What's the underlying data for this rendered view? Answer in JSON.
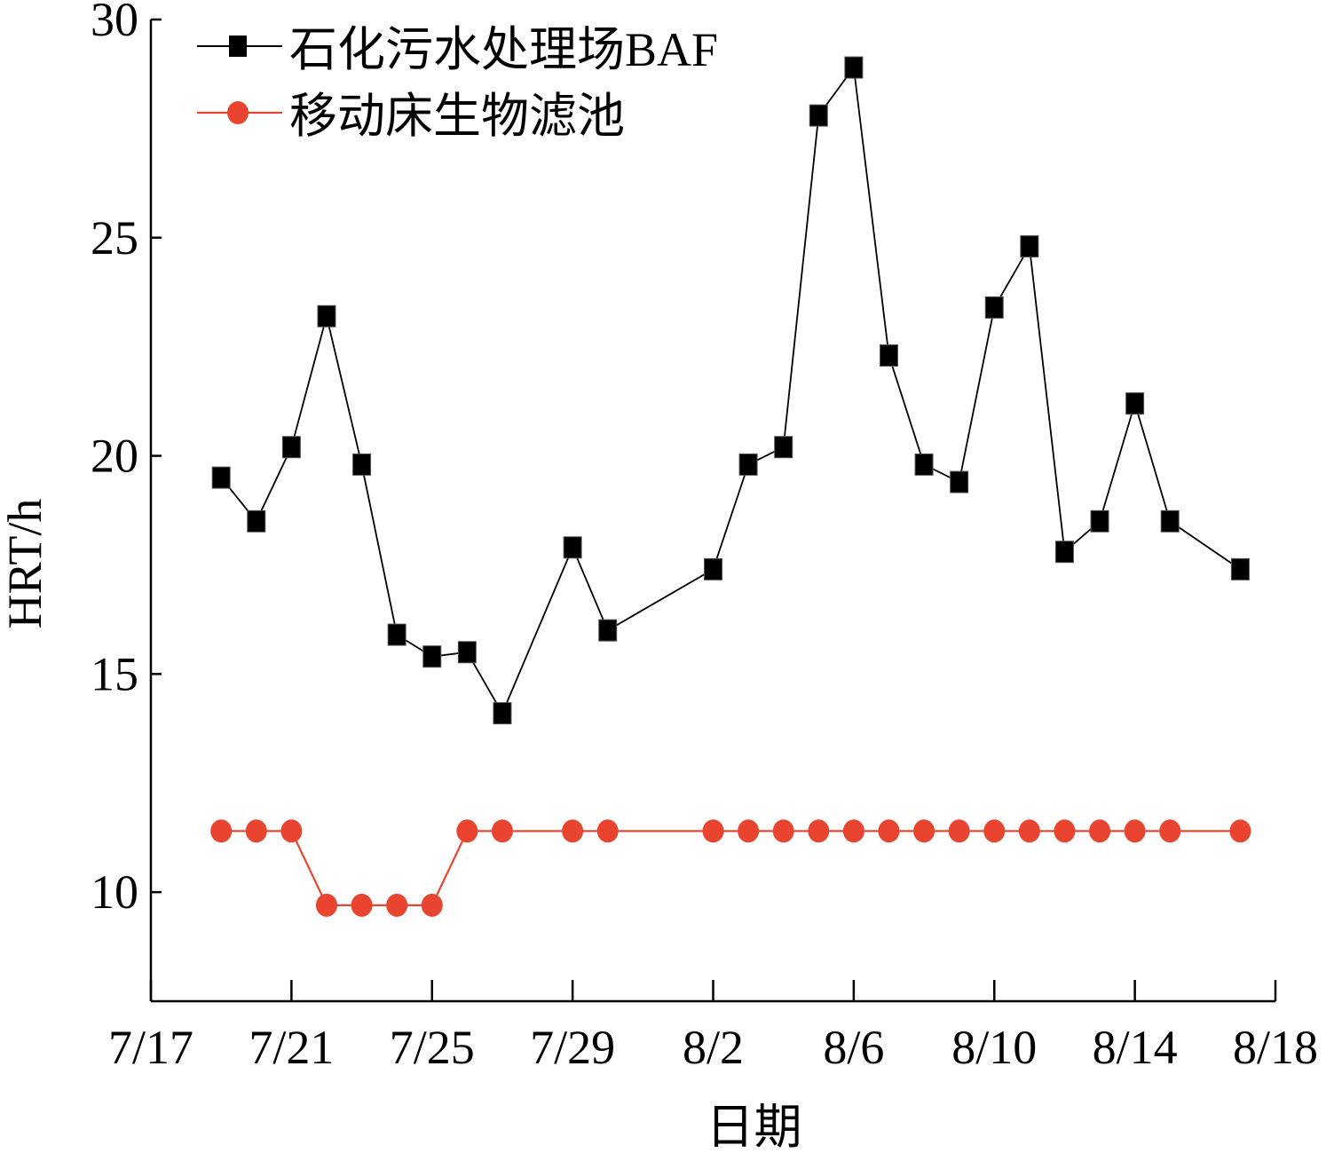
{
  "chart_data": {
    "type": "line",
    "title": "",
    "xlabel": "日期",
    "ylabel": "HRT/h",
    "xlim": [
      "7/17",
      "8/18"
    ],
    "ylim": [
      7.5,
      30
    ],
    "x_ticks": [
      "7/17",
      "7/21",
      "7/25",
      "7/29",
      "8/2",
      "8/6",
      "8/10",
      "8/14",
      "8/18"
    ],
    "y_ticks": [
      10,
      15,
      20,
      25,
      30
    ],
    "grid": false,
    "legend_position": "top-left",
    "series": [
      {
        "name": "石化污水处理场BAF",
        "color": "#000000",
        "marker": "square",
        "x": [
          "7/19",
          "7/20",
          "7/21",
          "7/22",
          "7/23",
          "7/24",
          "7/25",
          "7/26",
          "7/27",
          "7/29",
          "7/30",
          "8/2",
          "8/3",
          "8/4",
          "8/5",
          "8/6",
          "8/7",
          "8/8",
          "8/9",
          "8/10",
          "8/11",
          "8/12",
          "8/13",
          "8/14",
          "8/15",
          "8/17"
        ],
        "values": [
          19.5,
          18.5,
          20.2,
          23.2,
          19.8,
          15.9,
          15.4,
          15.5,
          14.1,
          17.9,
          16.0,
          17.4,
          19.8,
          20.2,
          27.8,
          28.9,
          22.3,
          19.8,
          19.4,
          23.4,
          24.8,
          17.8,
          18.5,
          21.2,
          18.5,
          17.4
        ]
      },
      {
        "name": "移动床生物滤池",
        "color": "#e8442f",
        "marker": "circle",
        "x": [
          "7/19",
          "7/20",
          "7/21",
          "7/22",
          "7/23",
          "7/24",
          "7/25",
          "7/26",
          "7/27",
          "7/29",
          "7/30",
          "8/2",
          "8/3",
          "8/4",
          "8/5",
          "8/6",
          "8/7",
          "8/8",
          "8/9",
          "8/10",
          "8/11",
          "8/12",
          "8/13",
          "8/14",
          "8/15",
          "8/17"
        ],
        "values": [
          11.4,
          11.4,
          11.4,
          9.7,
          9.7,
          9.7,
          9.7,
          11.4,
          11.4,
          11.4,
          11.4,
          11.4,
          11.4,
          11.4,
          11.4,
          11.4,
          11.4,
          11.4,
          11.4,
          11.4,
          11.4,
          11.4,
          11.4,
          11.4,
          11.4,
          11.4
        ]
      }
    ]
  }
}
